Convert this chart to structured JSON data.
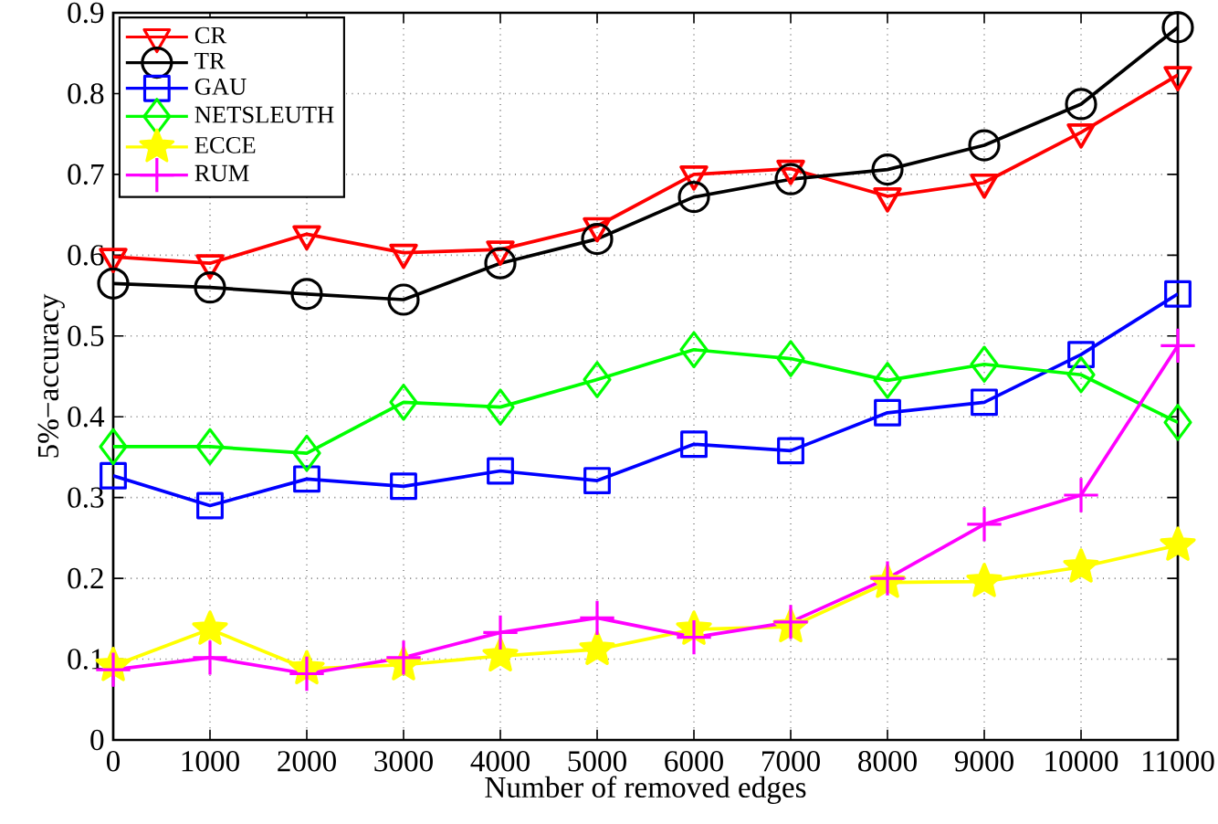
{
  "chart_data": {
    "type": "line",
    "xlabel": "Number of removed edges",
    "ylabel": "5%−accuracy",
    "x": [
      0,
      1000,
      2000,
      3000,
      4000,
      5000,
      6000,
      7000,
      8000,
      9000,
      10000,
      11000
    ],
    "xlim": [
      0,
      11000
    ],
    "xticks": [
      0,
      1000,
      2000,
      3000,
      4000,
      5000,
      6000,
      7000,
      8000,
      9000,
      10000,
      11000
    ],
    "ylim": [
      0,
      0.9
    ],
    "yticks": [
      0,
      0.1,
      0.2,
      0.3,
      0.4,
      0.5,
      0.6,
      0.7,
      0.8,
      0.9
    ],
    "grid": true,
    "legend": "top left",
    "line_style": "solid",
    "series": [
      {
        "name": "CR",
        "color": "#ff0000",
        "marker": "triangle",
        "values": [
          0.598,
          0.59,
          0.626,
          0.603,
          0.607,
          0.636,
          0.7,
          0.707,
          0.673,
          0.69,
          0.752,
          0.823
        ]
      },
      {
        "name": "TR",
        "color": "#000000",
        "marker": "circle",
        "values": [
          0.565,
          0.56,
          0.552,
          0.545,
          0.59,
          0.62,
          0.672,
          0.694,
          0.706,
          0.736,
          0.787,
          0.882
        ]
      },
      {
        "name": "GAU",
        "color": "#0000ff",
        "marker": "square",
        "values": [
          0.327,
          0.29,
          0.323,
          0.314,
          0.333,
          0.321,
          0.366,
          0.358,
          0.405,
          0.418,
          0.477,
          0.552
        ]
      },
      {
        "name": "NETSLEUTH",
        "color": "#00ff00",
        "marker": "diamond",
        "values": [
          0.363,
          0.363,
          0.355,
          0.418,
          0.412,
          0.446,
          0.483,
          0.472,
          0.445,
          0.465,
          0.452,
          0.393
        ]
      },
      {
        "name": "ECCE",
        "color": "#ffff00",
        "marker": "star",
        "values": [
          0.092,
          0.137,
          0.088,
          0.093,
          0.104,
          0.112,
          0.137,
          0.14,
          0.195,
          0.196,
          0.214,
          0.241
        ]
      },
      {
        "name": "RUM",
        "color": "#ff00ff",
        "marker": "cross",
        "values": [
          0.087,
          0.102,
          0.082,
          0.102,
          0.133,
          0.151,
          0.127,
          0.146,
          0.2,
          0.267,
          0.303,
          0.488
        ]
      }
    ]
  }
}
